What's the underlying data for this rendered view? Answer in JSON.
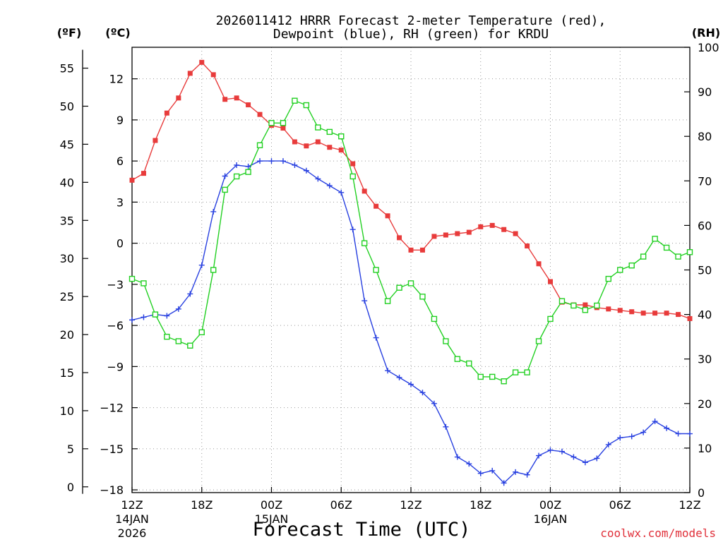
{
  "chart_data": {
    "type": "line",
    "title_line1": "2026011412 HRRR Forecast 2-meter Temperature (red),",
    "title_line2": "Dewpoint (blue), RH (green) for KRDU",
    "xlabel": "Forecast Time (UTC)",
    "credit": "coolwx.com/models",
    "unit_labels": {
      "fahrenheit": "(ºF)",
      "celsius": "(ºC)",
      "rh": "(RH)"
    },
    "grid": true,
    "x_ticks": [
      {
        "h": 0,
        "label": "12Z",
        "sub1": "14JAN",
        "sub2": "2026"
      },
      {
        "h": 6,
        "label": "18Z"
      },
      {
        "h": 12,
        "label": "00Z",
        "sub1": "15JAN"
      },
      {
        "h": 18,
        "label": "06Z"
      },
      {
        "h": 24,
        "label": "12Z"
      },
      {
        "h": 30,
        "label": "18Z"
      },
      {
        "h": 36,
        "label": "00Z",
        "sub1": "16JAN"
      },
      {
        "h": 42,
        "label": "06Z"
      },
      {
        "h": 48,
        "label": "12Z"
      }
    ],
    "x_range": [
      0,
      48
    ],
    "celsius_axis": {
      "range": [
        -18.2,
        14.3
      ],
      "ticks": [
        12,
        9,
        6,
        3,
        0,
        -3,
        -6,
        -9,
        -12,
        -15,
        -18
      ]
    },
    "fahrenheit_axis": {
      "ticks": [
        55,
        50,
        45,
        40,
        35,
        30,
        25,
        20,
        15,
        10,
        5,
        0
      ]
    },
    "rh_axis": {
      "range": [
        0,
        100
      ],
      "ticks": [
        100,
        90,
        80,
        70,
        60,
        50,
        40,
        30,
        20,
        10,
        0
      ]
    },
    "series": [
      {
        "key": "temperature",
        "color": "#e83b3b",
        "marker": "filled-square",
        "x": [
          0,
          1,
          2,
          3,
          4,
          5,
          6,
          7,
          8,
          9,
          10,
          11,
          12,
          13,
          14,
          15,
          16,
          17,
          18,
          19,
          20,
          21,
          22,
          23,
          24,
          25,
          26,
          27,
          28,
          29,
          30,
          31,
          32,
          33,
          34,
          35,
          36,
          37,
          38,
          39,
          40,
          41,
          42,
          43,
          44,
          45,
          46,
          47,
          48
        ],
        "values": [
          4.6,
          5.1,
          7.5,
          9.5,
          10.6,
          12.4,
          13.2,
          12.3,
          10.5,
          10.6,
          10.1,
          9.4,
          8.6,
          8.4,
          7.4,
          7.1,
          7.4,
          7.0,
          6.8,
          5.8,
          3.8,
          2.7,
          2.0,
          0.4,
          -0.5,
          -0.5,
          0.5,
          0.6,
          0.7,
          0.8,
          1.2,
          1.3,
          1.0,
          0.7,
          -0.2,
          -1.5,
          -2.8,
          -4.3,
          -4.5,
          -4.5,
          -4.7,
          -4.8,
          -4.9,
          -5.0,
          -5.1,
          -5.1,
          -5.1,
          -5.2,
          -5.5
        ]
      },
      {
        "key": "dewpoint",
        "color": "#2840e0",
        "marker": "plus",
        "x": [
          0,
          1,
          2,
          3,
          4,
          5,
          6,
          7,
          8,
          9,
          10,
          11,
          12,
          13,
          14,
          15,
          16,
          17,
          18,
          19,
          20,
          21,
          22,
          23,
          24,
          25,
          26,
          27,
          28,
          29,
          30,
          31,
          32,
          33,
          34,
          35,
          36,
          37,
          38,
          39,
          40,
          41,
          42,
          43,
          44,
          45,
          46,
          47,
          48
        ],
        "values": [
          -5.6,
          -5.4,
          -5.2,
          -5.3,
          -4.8,
          -3.7,
          -1.6,
          2.3,
          4.9,
          5.7,
          5.6,
          6.0,
          6.0,
          6.0,
          5.7,
          5.3,
          4.7,
          4.2,
          3.7,
          1.0,
          -4.2,
          -6.9,
          -9.3,
          -9.8,
          -10.3,
          -10.9,
          -11.7,
          -13.4,
          -15.6,
          -16.1,
          -16.8,
          -16.6,
          -17.5,
          -16.7,
          -16.9,
          -15.5,
          -15.1,
          -15.2,
          -15.6,
          -16.0,
          -15.7,
          -14.7,
          -14.2,
          -14.1,
          -13.8,
          -13.0,
          -13.5,
          -13.9,
          -13.9
        ]
      },
      {
        "key": "rh",
        "color": "#22d022",
        "marker": "open-square",
        "x": [
          0,
          1,
          2,
          3,
          4,
          5,
          6,
          7,
          8,
          9,
          10,
          11,
          12,
          13,
          14,
          15,
          16,
          17,
          18,
          19,
          20,
          21,
          22,
          23,
          24,
          25,
          26,
          27,
          28,
          29,
          30,
          31,
          32,
          33,
          34,
          35,
          36,
          37,
          38,
          39,
          40,
          41,
          42,
          43,
          44,
          45,
          46,
          47,
          48
        ],
        "values": [
          48,
          47,
          40,
          35,
          34,
          33,
          36,
          50,
          68,
          71,
          72,
          78,
          83,
          83,
          88,
          87,
          82,
          81,
          80,
          71,
          56,
          50,
          43,
          46,
          47,
          44,
          39,
          34,
          30,
          29,
          26,
          26,
          25,
          27,
          27,
          34,
          39,
          43,
          42,
          41,
          42,
          48,
          50,
          51,
          53,
          57,
          55,
          53,
          54
        ]
      }
    ]
  }
}
